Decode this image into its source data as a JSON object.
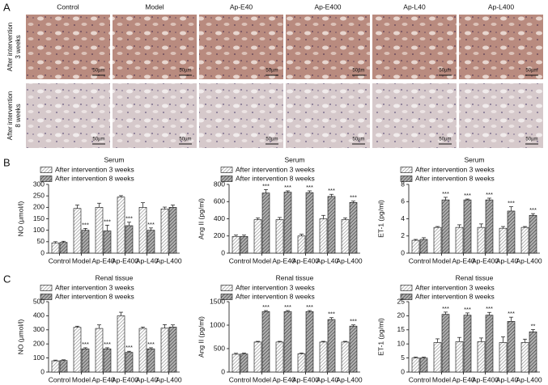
{
  "panel_labels": [
    "A",
    "B",
    "C"
  ],
  "panel_a": {
    "columns": [
      "Control",
      "Model",
      "Ap-E40",
      "Ap-E400",
      "Ap-L40",
      "Ap-L400"
    ],
    "rows": [
      [
        "After intervention",
        "3 weeks"
      ],
      [
        "After intervention",
        "8 weeks"
      ]
    ],
    "scale_bar": "50µm"
  },
  "chart_data": [
    {
      "type": "bar",
      "title": "Serum",
      "y_label": "NO (µmol/l)",
      "categories": [
        "Control",
        "Model",
        "Ap-E40",
        "Ap-E400",
        "Ap-L40",
        "Ap-L400"
      ],
      "ylim": [
        0,
        300
      ],
      "yticks": [
        0,
        50,
        100,
        150,
        200,
        250,
        300
      ],
      "series": [
        {
          "name": "After intervention 3 weeks",
          "color": "#8c8c8c",
          "values": [
            45,
            195,
            200,
            245,
            200,
            193
          ],
          "errors": [
            5,
            15,
            18,
            6,
            20,
            8
          ]
        },
        {
          "name": "After intervention 8 weeks",
          "color": "#3a3a3a",
          "values": [
            47,
            100,
            97,
            120,
            100,
            200
          ],
          "errors": [
            5,
            8,
            25,
            15,
            10,
            10
          ],
          "annotations": [
            null,
            "***",
            "***",
            "***",
            "***",
            null
          ]
        }
      ]
    },
    {
      "type": "bar",
      "title": "Serum",
      "y_label": "Ang II (pg/ml)",
      "categories": [
        "Control",
        "Model",
        "Ap-E40",
        "Ap-E400",
        "Ap-L40",
        "Ap-L400"
      ],
      "ylim": [
        0,
        800
      ],
      "yticks": [
        0,
        200,
        400,
        600,
        800
      ],
      "series": [
        {
          "name": "After intervention 3 weeks",
          "color": "#8c8c8c",
          "values": [
            195,
            390,
            390,
            200,
            400,
            390
          ],
          "errors": [
            15,
            20,
            25,
            20,
            40,
            20
          ]
        },
        {
          "name": "After intervention 8 weeks",
          "color": "#3a3a3a",
          "values": [
            195,
            700,
            710,
            705,
            660,
            590
          ],
          "errors": [
            15,
            40,
            15,
            20,
            25,
            15
          ],
          "annotations": [
            null,
            "***",
            "***",
            "***",
            "***",
            "***"
          ]
        }
      ]
    },
    {
      "type": "bar",
      "title": "Serum",
      "y_label": "ET-1 (pg/ml)",
      "categories": [
        "Control",
        "Model",
        "Ap-E40",
        "Ap-E400",
        "Ap-L40",
        "Ap-L400"
      ],
      "ylim": [
        0,
        8
      ],
      "yticks": [
        0,
        2,
        4,
        6,
        8
      ],
      "series": [
        {
          "name": "After intervention 3 weeks",
          "color": "#8c8c8c",
          "values": [
            1.5,
            3.0,
            3.0,
            3.0,
            2.9,
            3.0
          ],
          "errors": [
            0.1,
            0.1,
            0.3,
            0.4,
            0.2,
            0.1
          ]
        },
        {
          "name": "After intervention 8 weeks",
          "color": "#3a3a3a",
          "values": [
            1.6,
            6.2,
            6.2,
            6.2,
            4.9,
            4.4
          ],
          "errors": [
            0.2,
            0.3,
            0.1,
            0.2,
            0.5,
            0.2
          ],
          "annotations": [
            null,
            "***",
            "***",
            "***",
            "***",
            "***"
          ]
        }
      ]
    },
    {
      "type": "bar",
      "title": "Renal tissue",
      "y_label": "NO (µmol/l)",
      "categories": [
        "Control",
        "Model",
        "Ap-E40",
        "Ap-E400",
        "Ap-L40",
        "Ap-L400"
      ],
      "ylim": [
        0,
        500
      ],
      "yticks": [
        0,
        100,
        200,
        300,
        400,
        500
      ],
      "series": [
        {
          "name": "After intervention 3 weeks",
          "color": "#8c8c8c",
          "values": [
            80,
            318,
            310,
            400,
            310,
            312
          ],
          "errors": [
            5,
            8,
            25,
            25,
            10,
            25
          ]
        },
        {
          "name": "After intervention 8 weeks",
          "color": "#3a3a3a",
          "values": [
            82,
            165,
            165,
            140,
            165,
            320
          ],
          "errors": [
            5,
            8,
            8,
            8,
            8,
            15
          ],
          "annotations": [
            null,
            "***",
            "***",
            "***",
            "***",
            null
          ]
        }
      ]
    },
    {
      "type": "bar",
      "title": "Renal tissue",
      "y_label": "Ang II (pg/ml)",
      "categories": [
        "Control",
        "Model",
        "Ap-E40",
        "Ap-E400",
        "Ap-L40",
        "Ap-L400"
      ],
      "ylim": [
        0,
        1500
      ],
      "yticks": [
        0,
        500,
        1000,
        1500
      ],
      "series": [
        {
          "name": "After intervention 3 weeks",
          "color": "#8c8c8c",
          "values": [
            380,
            640,
            640,
            390,
            640,
            640
          ],
          "errors": [
            20,
            15,
            15,
            15,
            15,
            15
          ]
        },
        {
          "name": "After intervention 8 weeks",
          "color": "#3a3a3a",
          "values": [
            385,
            1290,
            1290,
            1290,
            1120,
            980
          ],
          "errors": [
            20,
            20,
            20,
            20,
            40,
            25
          ],
          "annotations": [
            null,
            "***",
            "***",
            "***",
            "***",
            "***"
          ]
        }
      ]
    },
    {
      "type": "bar",
      "title": "Renal tissue",
      "y_label": "ET-1 (pg/ml)",
      "categories": [
        "Control",
        "Model",
        "Ap-E40",
        "Ap-E400",
        "Ap-L40",
        "Ap-L400"
      ],
      "ylim": [
        0,
        25
      ],
      "yticks": [
        0,
        5,
        10,
        15,
        20,
        25
      ],
      "series": [
        {
          "name": "After intervention 3 weeks",
          "color": "#8c8c8c",
          "values": [
            5,
            10.5,
            10.8,
            10.8,
            10.5,
            10.5
          ],
          "errors": [
            0.3,
            1.3,
            1.5,
            1.3,
            2,
            1.2
          ]
        },
        {
          "name": "After intervention 8 weeks",
          "color": "#3a3a3a",
          "values": [
            5,
            20.5,
            20.2,
            20.2,
            18,
            14.3
          ],
          "errors": [
            0.3,
            0.8,
            0.8,
            1,
            1.5,
            0.8
          ],
          "annotations": [
            null,
            "***",
            "***",
            "***",
            "***",
            "**"
          ]
        }
      ]
    }
  ]
}
